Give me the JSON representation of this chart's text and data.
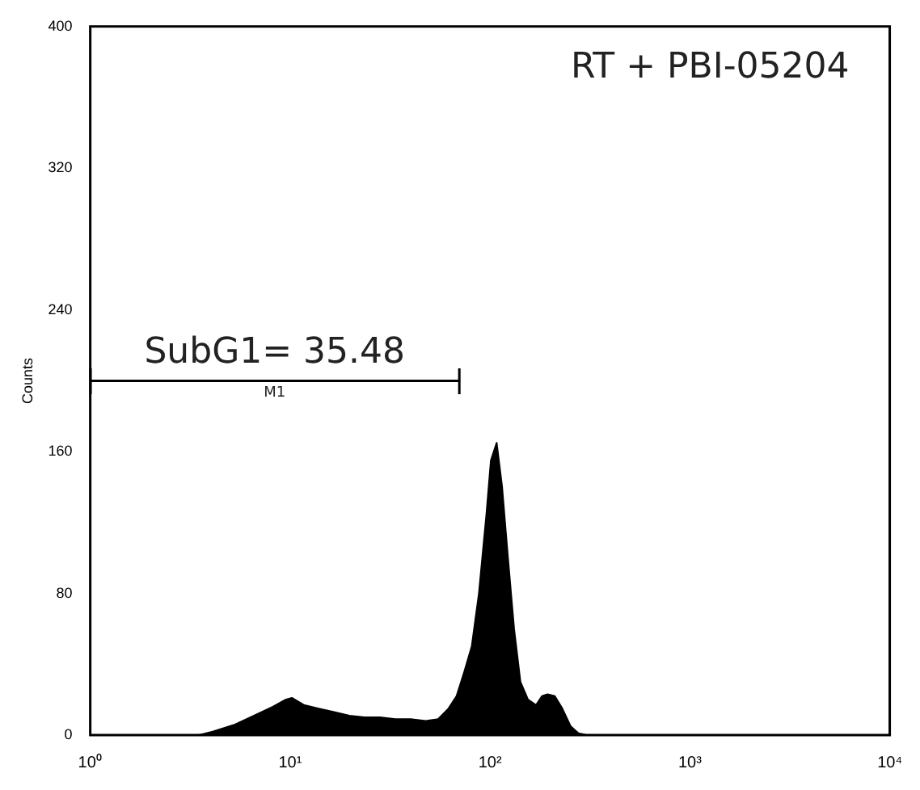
{
  "chart_data": {
    "type": "area",
    "title": "RT + PBI-05204",
    "ylabel": "Counts",
    "x": [
      3.5,
      4.1,
      5.3,
      6.9,
      8.2,
      9.5,
      10.2,
      11.7,
      13.9,
      16.6,
      19.8,
      23.6,
      28.2,
      33.6,
      40,
      47.7,
      55,
      62,
      68,
      74,
      81,
      88,
      96,
      101,
      108,
      115,
      123,
      132,
      142,
      155,
      170,
      182,
      194,
      211,
      230,
      253,
      277,
      304
    ],
    "series": [
      {
        "color": "#000000",
        "values": [
          0,
          2,
          6,
          12,
          16,
          20,
          21,
          17,
          15,
          13,
          11,
          10,
          10,
          9,
          9,
          8,
          9,
          15,
          22,
          35,
          50,
          80,
          125,
          155,
          165,
          140,
          100,
          60,
          30,
          20,
          17,
          22,
          23,
          22,
          15,
          5,
          1,
          0
        ]
      },
      {
        "type": "line",
        "color": "#000000",
        "x": [
          1,
          70
        ],
        "values": [
          200,
          200
        ]
      }
    ],
    "log": "x",
    "xlim": [
      1,
      10000
    ],
    "ylim": [
      0,
      400
    ],
    "xticks": [
      {
        "value": 1,
        "label": "10⁰"
      },
      {
        "value": 10,
        "label": "10¹"
      },
      {
        "value": 100,
        "label": "10²"
      },
      {
        "value": 1000,
        "label": "10³"
      },
      {
        "value": 10000,
        "label": "10⁴"
      }
    ],
    "yticks": [
      0,
      80,
      160,
      240,
      320,
      400
    ],
    "annotations": [
      "SubG1= 35.48",
      "M1"
    ],
    "grid": false,
    "marker": "none"
  }
}
